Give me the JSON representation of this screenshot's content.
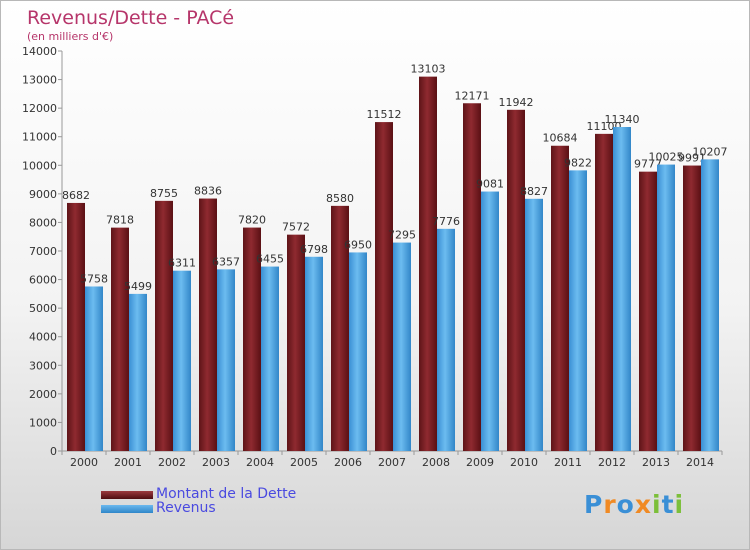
{
  "title": "Revenus/Dette - PACé",
  "subtitle": "(en milliers d'€)",
  "chart_data": {
    "type": "bar",
    "title": "Revenus/Dette - PACé",
    "subtitle": "(en milliers d'€)",
    "categories": [
      "2000",
      "2001",
      "2002",
      "2003",
      "2004",
      "2005",
      "2006",
      "2007",
      "2008",
      "2009",
      "2010",
      "2011",
      "2012",
      "2013",
      "2014"
    ],
    "series": [
      {
        "name": "Montant de la Dette",
        "color": "#7a1f24",
        "values": [
          8682,
          7818,
          8755,
          8836,
          7820,
          7572,
          8580,
          11512,
          13103,
          12171,
          11942,
          10684,
          11100,
          9777,
          9991
        ],
        "labels": [
          "8682",
          "7818",
          "8755",
          "8836",
          "7820",
          "7572",
          "8580",
          "11512",
          "13103",
          "12171",
          "11942",
          "10684",
          "11100",
          "9777",
          "9991"
        ]
      },
      {
        "name": "Revenus",
        "color": "#4aa3e2",
        "values": [
          5758,
          5499,
          6311,
          6357,
          6455,
          6798,
          6950,
          7295,
          7776,
          9081,
          8827,
          9822,
          11340,
          10025,
          10207
        ],
        "labels": [
          "5758",
          "5499",
          "6311",
          "6357",
          "6455",
          "6798",
          "6950",
          "7295",
          "7776",
          "9081",
          "8827",
          "9822",
          "11340",
          "10025",
          "10207"
        ]
      }
    ],
    "ylim": [
      0,
      14000
    ],
    "yticks": [
      "0",
      "1000",
      "2000",
      "3000",
      "4000",
      "5000",
      "6000",
      "7000",
      "8000",
      "9000",
      "10000",
      "11000",
      "12000",
      "13000",
      "14000"
    ],
    "grid": false,
    "legend_position": "bottom-left"
  },
  "legend": [
    {
      "label": "Montant de la Dette",
      "color": "#7a1f24"
    },
    {
      "label": "Revenus",
      "color": "#4aa3e2"
    }
  ],
  "logo": {
    "text": "Proxiti",
    "letters": [
      "P",
      "r",
      "o",
      "x",
      "i",
      "t",
      "i"
    ],
    "colors": [
      "#3a8fd6",
      "#f08a24",
      "#3a8fd6",
      "#f08a24",
      "#7cbf3a",
      "#3a8fd6",
      "#7cbf3a"
    ]
  }
}
